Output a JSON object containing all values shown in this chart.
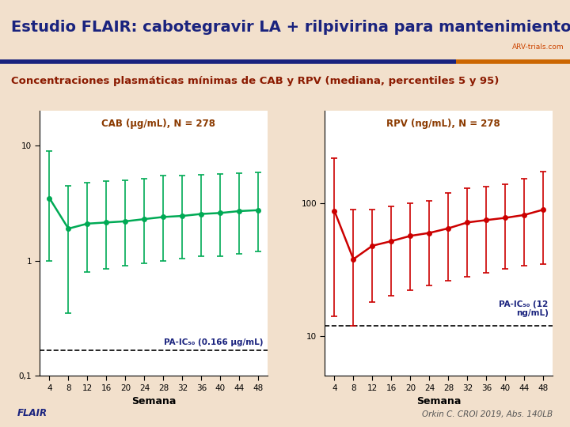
{
  "title": "Estudio FLAIR: cabotegravir LA + rilpivirina para mantenimiento",
  "subtitle": "Concentraciones plasmáticas mínimas de CAB y RPV (mediana, percentiles 5 y 95)",
  "title_color": "#1a237e",
  "subtitle_color": "#8B1A00",
  "bg_color": "#f2e0cc",
  "footer_left": "FLAIR",
  "footer_right": "Orkin C. CROI 2019, Abs. 140LB",
  "weeks": [
    4,
    8,
    12,
    16,
    20,
    24,
    28,
    32,
    36,
    40,
    44,
    48
  ],
  "cab_median": [
    3.5,
    1.9,
    2.1,
    2.15,
    2.2,
    2.3,
    2.4,
    2.45,
    2.55,
    2.6,
    2.7,
    2.75
  ],
  "cab_p5": [
    1.0,
    0.35,
    0.8,
    0.85,
    0.9,
    0.95,
    1.0,
    1.05,
    1.1,
    1.1,
    1.15,
    1.2
  ],
  "cab_p95": [
    9.0,
    4.5,
    4.8,
    4.9,
    5.0,
    5.2,
    5.5,
    5.5,
    5.6,
    5.7,
    5.8,
    5.9
  ],
  "cab_pa_ic90": 0.166,
  "cab_label": "CAB (μg/mL), N = 278",
  "cab_color": "#00aa55",
  "cab_xlabel": "Semana",
  "cab_ylim": [
    0.1,
    20
  ],
  "cab_pa_label": "PA-IC₅₀ (0.166 μg/mL)",
  "rpv_median": [
    88,
    38,
    48,
    52,
    57,
    60,
    65,
    72,
    75,
    78,
    82,
    90
  ],
  "rpv_p5": [
    14,
    12,
    18,
    20,
    22,
    24,
    26,
    28,
    30,
    32,
    34,
    35
  ],
  "rpv_p95": [
    220,
    90,
    90,
    95,
    100,
    105,
    120,
    130,
    135,
    140,
    155,
    175
  ],
  "rpv_pa_ic90": 12,
  "rpv_label": "RPV (ng/mL), N = 278",
  "rpv_color": "#cc0000",
  "rpv_xlabel": "Semana",
  "rpv_pa_label": "PA-IC₅₀ (12\nng/mL)",
  "rpv_ylim": [
    5,
    500
  ],
  "bar1_color": "#1a237e",
  "bar2_color": "#cc6600",
  "arv_color": "#cc4400",
  "label_color": "#8B3A00"
}
